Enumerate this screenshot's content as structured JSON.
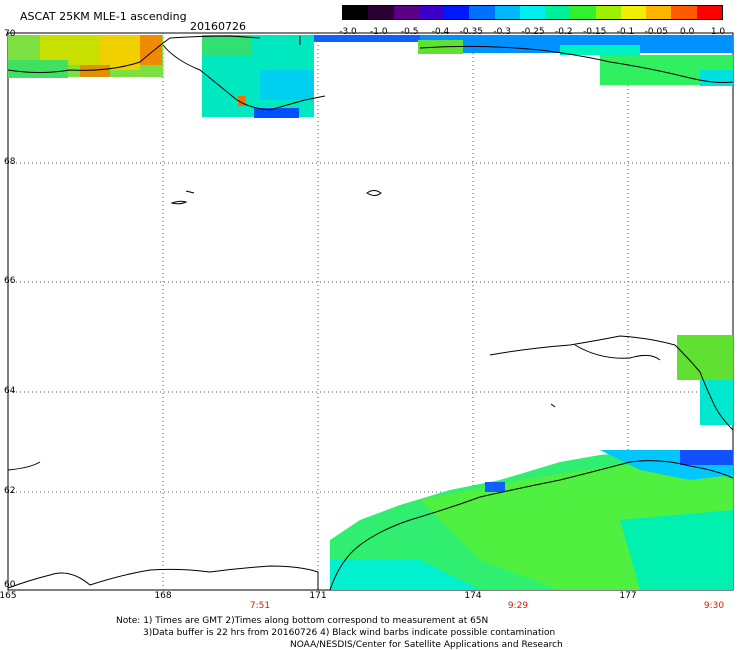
{
  "title": "ASCAT 25KM MLE-1 ascending",
  "date": "20160726",
  "colorbar": {
    "ticks": [
      "-3.0",
      "-1.0",
      "-0.5",
      "-0.4",
      "-0.35",
      "-0.3",
      "-0.25",
      "-0.2",
      "-0.15",
      "-0.1",
      "-0.05",
      "0.0",
      "1.0"
    ],
    "colors": [
      "#000000",
      "#2b0033",
      "#5a0085",
      "#3b00c8",
      "#0018ff",
      "#0070ff",
      "#00b8ff",
      "#00f0f0",
      "#00f09a",
      "#30f030",
      "#9cf000",
      "#f0f000",
      "#ffb400",
      "#ff5a00",
      "#ff0000"
    ]
  },
  "lat_labels": [
    "70",
    "68",
    "66",
    "64",
    "62",
    "60"
  ],
  "lon_labels": [
    "165",
    "168",
    "171",
    "174",
    "177"
  ],
  "time_labels": [
    "7:51",
    "9:29",
    "9:30"
  ],
  "notes": [
    "Note: 1) Times are GMT 2)Times along bottom correspond to measurement at 65N",
    "3)Data buffer is 22 hrs from 20160726 4) Black wind barbs indicate possible contamination",
    "NOAA/NESDIS/Center for Satellite Applications and Research"
  ]
}
